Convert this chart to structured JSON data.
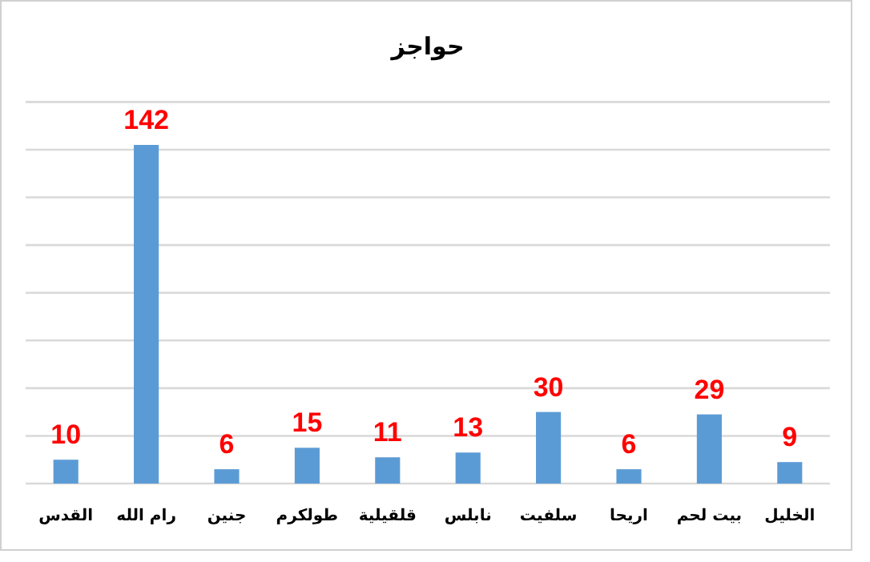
{
  "chart_data": {
    "type": "bar",
    "title": "حواجز",
    "categories": [
      "القدس",
      "رام الله",
      "جنين",
      "طولكرم",
      "قلقيلية",
      "نابلس",
      "سلفيت",
      "اريحا",
      "بيت لحم",
      "الخليل"
    ],
    "values": [
      10,
      142,
      6,
      15,
      11,
      13,
      30,
      6,
      29,
      9
    ],
    "color": "#5b9bd5",
    "data_labels": true,
    "grid": "y",
    "tick_labels": "x",
    "ylim": [
      0,
      160
    ],
    "yticks": [
      {
        "value": 0,
        "label": null
      },
      {
        "value": 20,
        "label": null
      },
      {
        "value": 40,
        "label": null
      },
      {
        "value": 60,
        "label": null
      },
      {
        "value": 80,
        "label": null
      },
      {
        "value": 100,
        "label": null
      },
      {
        "value": 120,
        "label": null
      },
      {
        "value": 140,
        "label": null
      },
      {
        "value": 160,
        "label": null
      }
    ]
  }
}
